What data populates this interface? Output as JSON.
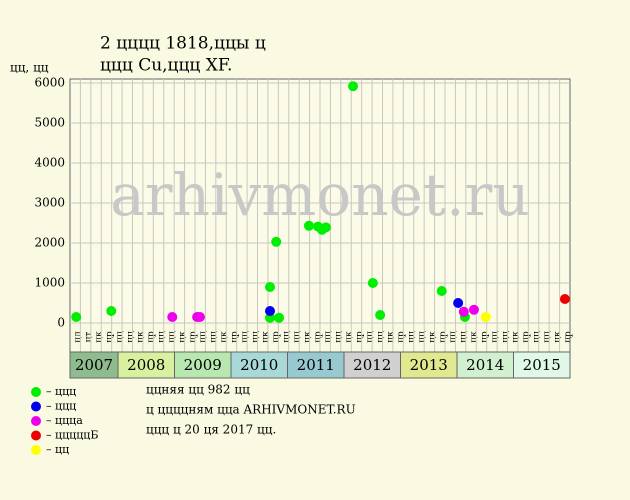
{
  "chart_data": {
    "type": "scatter",
    "title": [
      "2 цццц 1818,ццы ц",
      "ццц Cu,ццц XF."
    ],
    "y_label": "цц, цц",
    "watermark": "arhivmonet.ru",
    "xlim": [
      2007.15,
      2016.0
    ],
    "ylim": [
      0,
      6100
    ],
    "yticks": [
      0,
      1000,
      2000,
      3000,
      4000,
      5000,
      6000
    ],
    "years": [
      "2007",
      "2008",
      "2009",
      "2010",
      "2011",
      "2012",
      "2013",
      "2014",
      "2015"
    ],
    "year_colors": [
      "#8fbc8f",
      "#d8f0a0",
      "#b8e8b0",
      "#a8d8d8",
      "#98c8d0",
      "#d0d0d0",
      "#e0e890",
      "#d0f0d0",
      "#e0f8e8"
    ],
    "sublabels": [
      "цл",
      "цт",
      "цк",
      "цр",
      "цц",
      "цц",
      "цк",
      "цр",
      "цц",
      "цц",
      "цк",
      "цр",
      "цц",
      "цц",
      "цк",
      "цр",
      "цц",
      "цц",
      "цк",
      "цр",
      "цц",
      "цц",
      "цк",
      "цр",
      "цц",
      "цц",
      "цк",
      "цр",
      "цц",
      "цц",
      "цк",
      "цр",
      "цц",
      "цц",
      "цк",
      "цр",
      "цц",
      "цц",
      "цк",
      "цр",
      "цц",
      "цц",
      "цк",
      "цр",
      "цц",
      "цц",
      "цк",
      "цр"
    ],
    "grid": true,
    "series": [
      {
        "name": "– ццц",
        "color": "#00ee00",
        "x": [
          2007.26,
          2007.88,
          2010.69,
          2010.69,
          2010.8,
          2010.85,
          2011.38,
          2011.54,
          2011.61,
          2011.68,
          2012.16,
          2012.51,
          2012.64,
          2013.73,
          2014.14
        ],
        "values": [
          150,
          300,
          900,
          130,
          2030,
          130,
          2430,
          2410,
          2330,
          2390,
          5920,
          1000,
          200,
          800,
          150
        ]
      },
      {
        "name": "– ццц",
        "color": "#0000ee",
        "x": [
          2010.69,
          2014.02
        ],
        "values": [
          300,
          500
        ]
      },
      {
        "name": "– ццца",
        "color": "#ee00ee",
        "x": [
          2008.96,
          2009.4,
          2009.45,
          2014.12,
          2014.3
        ],
        "values": [
          150,
          150,
          150,
          280,
          330
        ]
      },
      {
        "name": "– цццццБ",
        "color": "#ee0000",
        "x": [
          2015.91
        ],
        "values": [
          600
        ]
      },
      {
        "name": "– цц",
        "color": "#ffff00",
        "x": [
          2014.51
        ],
        "values": [
          150
        ]
      }
    ],
    "notes": [
      "ццняя цц 982 цц",
      "ц ццццням цца ARHIVMONET.RU",
      "ццц ц 20 ця 2017 цц."
    ]
  }
}
